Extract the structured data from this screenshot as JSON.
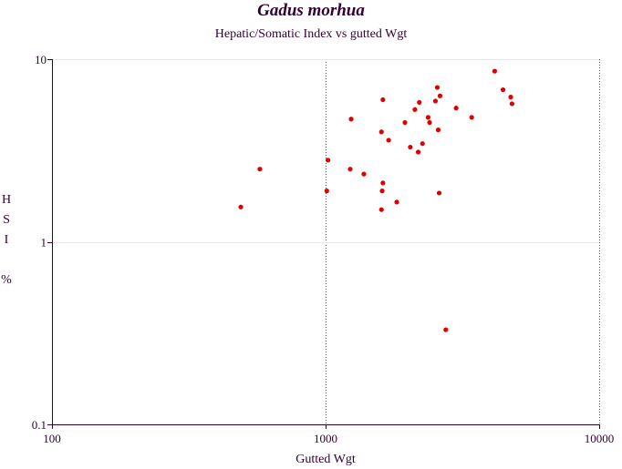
{
  "chart_data": {
    "type": "scatter",
    "title": "Gadus morhua",
    "subtitle": "Hepatic/Somatic Index vs gutted Wgt",
    "xlabel": "Gutted Wgt",
    "ylabel_lines": [
      "H",
      "S",
      "I",
      "",
      "%"
    ],
    "x_scale": "log",
    "y_scale": "log",
    "xlim": [
      100,
      10000
    ],
    "ylim": [
      0.1,
      10
    ],
    "x_ticks": [
      {
        "value": 100,
        "label": "100"
      },
      {
        "value": 1000,
        "label": "1000"
      },
      {
        "value": 10000,
        "label": "10000"
      }
    ],
    "y_ticks": [
      {
        "value": 0.1,
        "label": "0.1"
      },
      {
        "value": 1,
        "label": "1"
      },
      {
        "value": 10,
        "label": "10"
      }
    ],
    "grid": true,
    "series": [
      {
        "color": "#e00000",
        "points": [
          {
            "x": 490,
            "y": 1.55
          },
          {
            "x": 575,
            "y": 2.5
          },
          {
            "x": 1010,
            "y": 1.9
          },
          {
            "x": 1020,
            "y": 2.8
          },
          {
            "x": 1230,
            "y": 2.5
          },
          {
            "x": 1240,
            "y": 4.7
          },
          {
            "x": 1380,
            "y": 2.35
          },
          {
            "x": 1600,
            "y": 1.5
          },
          {
            "x": 1610,
            "y": 1.9
          },
          {
            "x": 1620,
            "y": 2.1
          },
          {
            "x": 1600,
            "y": 4.0
          },
          {
            "x": 1620,
            "y": 6.0
          },
          {
            "x": 1700,
            "y": 3.6
          },
          {
            "x": 1820,
            "y": 1.65
          },
          {
            "x": 1950,
            "y": 4.5
          },
          {
            "x": 2040,
            "y": 3.3
          },
          {
            "x": 2120,
            "y": 5.3
          },
          {
            "x": 2180,
            "y": 3.1
          },
          {
            "x": 2200,
            "y": 5.8
          },
          {
            "x": 2260,
            "y": 3.45
          },
          {
            "x": 2370,
            "y": 4.8
          },
          {
            "x": 2400,
            "y": 4.5
          },
          {
            "x": 2520,
            "y": 5.9
          },
          {
            "x": 2560,
            "y": 7.0
          },
          {
            "x": 2580,
            "y": 4.1
          },
          {
            "x": 2600,
            "y": 1.85
          },
          {
            "x": 2620,
            "y": 6.3
          },
          {
            "x": 2750,
            "y": 0.33
          },
          {
            "x": 3000,
            "y": 5.4
          },
          {
            "x": 3420,
            "y": 4.8
          },
          {
            "x": 4150,
            "y": 8.6
          },
          {
            "x": 4450,
            "y": 6.8
          },
          {
            "x": 4750,
            "y": 6.2
          },
          {
            "x": 4800,
            "y": 5.7
          }
        ]
      }
    ]
  }
}
